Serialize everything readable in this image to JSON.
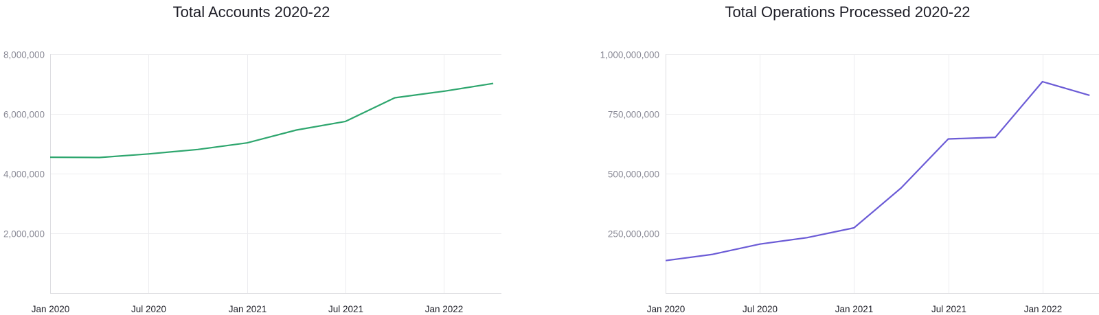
{
  "chart_data": [
    {
      "type": "line",
      "title": "Total Accounts 2020-22",
      "xlabel": "",
      "ylabel": "",
      "x": [
        "2020-01",
        "2020-04",
        "2020-07",
        "2020-10",
        "2021-01",
        "2021-04",
        "2021-07",
        "2021-10",
        "2022-01",
        "2022-04"
      ],
      "x_ticks": [
        "Jan 2020",
        "Jul 2020",
        "Jan 2021",
        "Jul 2021",
        "Jan 2022"
      ],
      "y_ticks": [
        "2,000,000",
        "4,000,000",
        "6,000,000",
        "8,000,000"
      ],
      "ylim": [
        0,
        8000000
      ],
      "grid": true,
      "series": [
        {
          "values": [
            4550000,
            4540000,
            4660000,
            4810000,
            5030000,
            5460000,
            5750000,
            6540000,
            6760000,
            7020000
          ],
          "color": "#2ea66e"
        }
      ]
    },
    {
      "type": "line",
      "title": "Total Operations Processed 2020-22",
      "xlabel": "",
      "ylabel": "",
      "x": [
        "2020-01",
        "2020-04",
        "2020-07",
        "2020-10",
        "2021-01",
        "2021-04",
        "2021-07",
        "2021-10",
        "2022-01",
        "2022-04"
      ],
      "x_ticks": [
        "Jan 2020",
        "Jul 2020",
        "Jan 2021",
        "Jul 2021",
        "Jan 2022"
      ],
      "y_ticks": [
        "250,000,000",
        "500,000,000",
        "750,000,000",
        "1,000,000,000"
      ],
      "ylim": [
        0,
        1000000000
      ],
      "grid": true,
      "series": [
        {
          "values": [
            136000000,
            162000000,
            205000000,
            232000000,
            273000000,
            440000000,
            645000000,
            652000000,
            885000000,
            828000000
          ],
          "color": "#6b5bd6"
        }
      ]
    }
  ]
}
